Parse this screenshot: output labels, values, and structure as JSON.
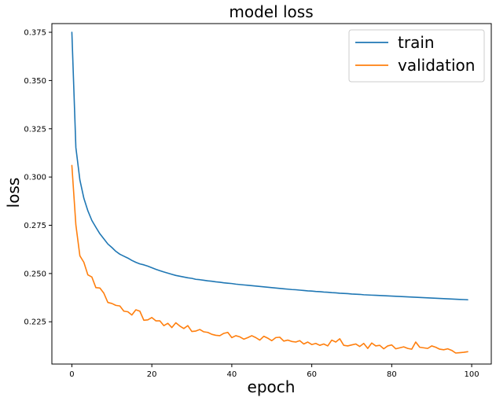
{
  "chart_data": {
    "type": "line",
    "title": "model loss",
    "xlabel": "epoch",
    "ylabel": "loss",
    "xlim": [
      -5,
      104.9
    ],
    "ylim": [
      0.2031,
      0.3795
    ],
    "xticks": [
      0,
      20,
      40,
      60,
      80,
      100
    ],
    "yticks": [
      0.225,
      0.25,
      0.275,
      0.3,
      0.325,
      0.35,
      0.375
    ],
    "xtick_labels": [
      "0",
      "20",
      "40",
      "60",
      "80",
      "100"
    ],
    "ytick_labels": [
      "0.225",
      "0.250",
      "0.275",
      "0.300",
      "0.325",
      "0.350",
      "0.375"
    ],
    "grid": false,
    "legend_position": "top-right",
    "colors": {
      "train": "#1f77b4",
      "validation": "#ff7f0e",
      "axes": "#000000",
      "background": "#ffffff"
    },
    "series": [
      {
        "name": "train",
        "color": "#1f77b4",
        "values": [
          0.375,
          0.3153,
          0.2985,
          0.289,
          0.2825,
          0.2775,
          0.274,
          0.2706,
          0.268,
          0.2653,
          0.2635,
          0.2615,
          0.26,
          0.259,
          0.258,
          0.2568,
          0.2558,
          0.255,
          0.2545,
          0.2538,
          0.253,
          0.2522,
          0.2515,
          0.2508,
          0.2502,
          0.2496,
          0.249,
          0.2486,
          0.2482,
          0.2478,
          0.2475,
          0.247,
          0.2468,
          0.2465,
          0.2462,
          0.246,
          0.2457,
          0.2455,
          0.2452,
          0.245,
          0.2448,
          0.2445,
          0.2443,
          0.2441,
          0.2439,
          0.2437,
          0.2435,
          0.2433,
          0.2431,
          0.2429,
          0.2427,
          0.2425,
          0.2423,
          0.2421,
          0.2419,
          0.2417,
          0.2416,
          0.2414,
          0.2412,
          0.241,
          0.2409,
          0.2407,
          0.2406,
          0.2404,
          0.2403,
          0.2401,
          0.24,
          0.2398,
          0.2397,
          0.2396,
          0.2394,
          0.2393,
          0.2392,
          0.239,
          0.2389,
          0.2388,
          0.2387,
          0.2386,
          0.2385,
          0.2384,
          0.2383,
          0.2382,
          0.2381,
          0.238,
          0.2379,
          0.2378,
          0.2377,
          0.2376,
          0.2375,
          0.2374,
          0.2373,
          0.2372,
          0.2371,
          0.237,
          0.2369,
          0.2368,
          0.2367,
          0.2366,
          0.2365,
          0.2364
        ]
      },
      {
        "name": "validation",
        "color": "#ff7f0e",
        "values": [
          0.306,
          0.2752,
          0.2592,
          0.2558,
          0.2493,
          0.2482,
          0.2427,
          0.2425,
          0.2398,
          0.235,
          0.2345,
          0.2335,
          0.2332,
          0.2305,
          0.2302,
          0.2285,
          0.2312,
          0.2305,
          0.2258,
          0.226,
          0.2272,
          0.2255,
          0.2255,
          0.223,
          0.2242,
          0.222,
          0.2245,
          0.2228,
          0.2215,
          0.223,
          0.22,
          0.2202,
          0.221,
          0.2198,
          0.2195,
          0.2185,
          0.218,
          0.2178,
          0.219,
          0.2195,
          0.2168,
          0.2178,
          0.2172,
          0.216,
          0.2168,
          0.2178,
          0.2168,
          0.2155,
          0.2175,
          0.2165,
          0.2152,
          0.2168,
          0.217,
          0.215,
          0.2155,
          0.2148,
          0.2145,
          0.2152,
          0.2135,
          0.2145,
          0.2132,
          0.2138,
          0.2128,
          0.2135,
          0.2125,
          0.2155,
          0.2145,
          0.2162,
          0.2128,
          0.2125,
          0.213,
          0.2135,
          0.2122,
          0.2138,
          0.2112,
          0.214,
          0.2125,
          0.2128,
          0.211,
          0.2125,
          0.213,
          0.211,
          0.2115,
          0.212,
          0.2112,
          0.2108,
          0.2145,
          0.2118,
          0.2115,
          0.2112,
          0.2125,
          0.2118,
          0.2108,
          0.2105,
          0.211,
          0.2102,
          0.2088,
          0.209,
          0.2092,
          0.2095
        ]
      }
    ]
  }
}
